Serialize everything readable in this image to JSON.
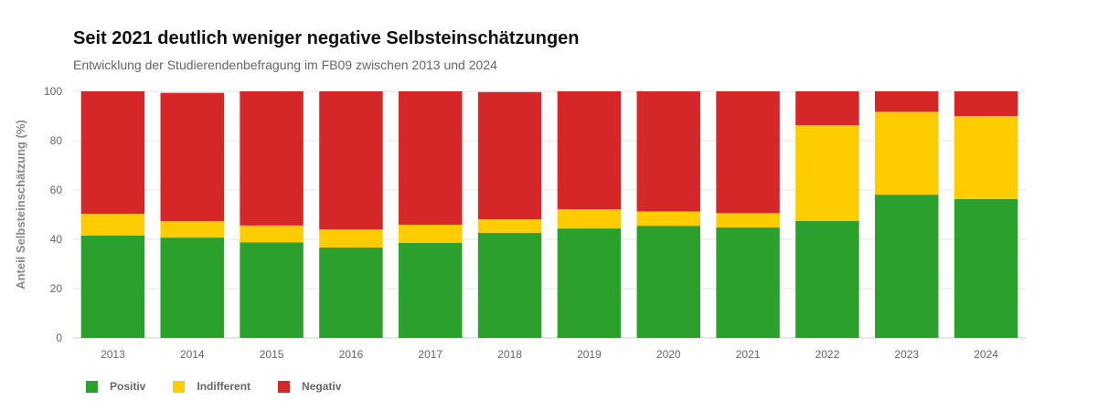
{
  "colors": {
    "positiv": "#2ca02c",
    "indifferent": "#ffcc00",
    "negativ": "#d62728"
  },
  "chart_data": {
    "type": "bar",
    "stacked": true,
    "title": "Seit 2021 deutlich weniger negative Selbsteinschätzungen",
    "subtitle": "Entwicklung der Studierendenbefragung im FB09 zwischen 2013 und 2024",
    "ylabel": "Anteil Selbsteinschätzung (%)",
    "xlabel": "",
    "ylim": [
      0,
      100
    ],
    "yticks": [
      0,
      20,
      40,
      60,
      80,
      100
    ],
    "grid": true,
    "legend_position": "bottom-left",
    "categories": [
      "2013",
      "2014",
      "2015",
      "2016",
      "2017",
      "2018",
      "2019",
      "2020",
      "2021",
      "2022",
      "2023",
      "2024"
    ],
    "series": [
      {
        "name": "Positiv",
        "color": "#2ca02c",
        "values": [
          41.5,
          40.7,
          38.7,
          36.7,
          38.6,
          42.6,
          44.4,
          45.5,
          44.8,
          47.4,
          58.1,
          56.3
        ]
      },
      {
        "name": "Indifferent",
        "color": "#ffcc00",
        "values": [
          8.8,
          6.6,
          6.9,
          7.3,
          7.3,
          5.5,
          7.8,
          5.8,
          5.8,
          38.9,
          33.6,
          33.7
        ]
      },
      {
        "name": "Negativ",
        "color": "#d62728",
        "values": [
          49.7,
          52.1,
          54.4,
          56.0,
          54.1,
          51.6,
          47.8,
          48.7,
          49.4,
          13.7,
          8.3,
          10.0
        ]
      }
    ]
  }
}
